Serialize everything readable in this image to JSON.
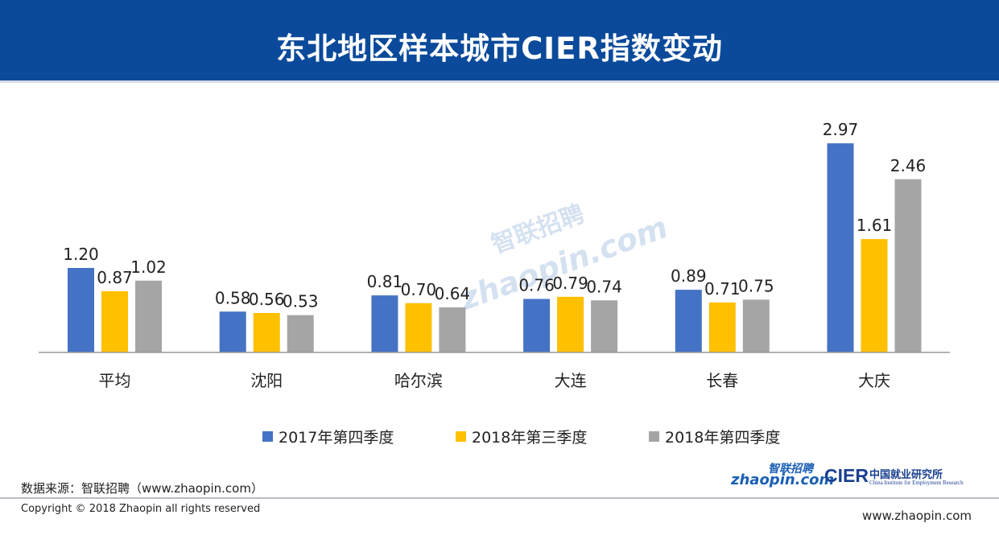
{
  "header": {
    "title": "东北地区样本城市CIER指数变动"
  },
  "chart_data": {
    "type": "bar",
    "categories": [
      "平均",
      "沈阳",
      "哈尔滨",
      "大连",
      "长春",
      "大庆"
    ],
    "series": [
      {
        "name": "2017年第四季度",
        "values": [
          1.2,
          0.58,
          0.81,
          0.76,
          0.89,
          2.97
        ],
        "labels": [
          "1.20",
          "0.58",
          "0.81",
          "0.76",
          "0.89",
          "2.97"
        ],
        "color": "#4472c4"
      },
      {
        "name": "2018年第三季度",
        "values": [
          0.87,
          0.56,
          0.7,
          0.79,
          0.71,
          1.61
        ],
        "labels": [
          "0.87",
          "0.56",
          "0.70",
          "0.79",
          "0.71",
          "1.61"
        ],
        "color": "#ffc000"
      },
      {
        "name": "2018年第四季度",
        "values": [
          1.02,
          0.53,
          0.64,
          0.74,
          0.75,
          2.46
        ],
        "labels": [
          "1.02",
          "0.53",
          "0.64",
          "0.74",
          "0.75",
          "2.46"
        ],
        "color": "#a5a5a5"
      }
    ],
    "ylim": [
      0,
      3.0
    ],
    "grid": false,
    "legend_position": "bottom"
  },
  "footer": {
    "source": "数据来源：智联招聘（www.zhaopin.com）",
    "copyright": "Copyright © 2018 Zhaopin all rights reserved",
    "site": "www.zhaopin.com"
  },
  "logos": {
    "zhaopin_cn": "智联招聘",
    "zhaopin_en": "zhaopin.com",
    "cier": "CIER",
    "cier_cn": "中国就业研究所",
    "cier_en": "China Institute for Employment Research"
  }
}
